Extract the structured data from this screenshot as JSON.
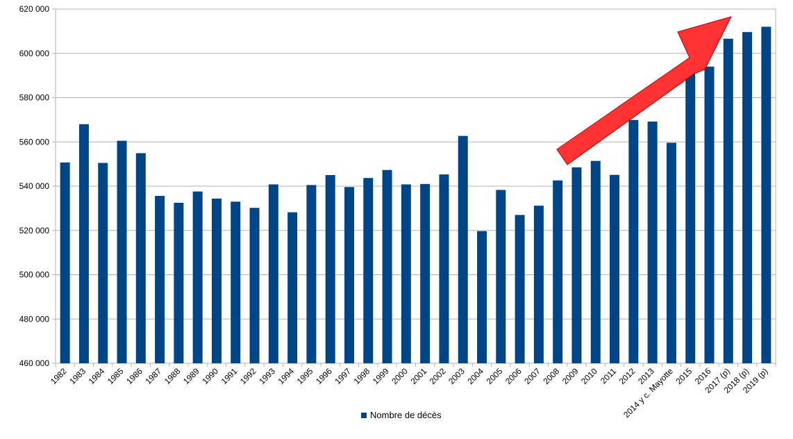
{
  "chart_data": {
    "type": "bar",
    "categories": [
      "1982",
      "1983",
      "1984",
      "1985",
      "1986",
      "1987",
      "1988",
      "1989",
      "1990",
      "1991",
      "1992",
      "1993",
      "1994",
      "1995",
      "1996",
      "1997",
      "1998",
      "1999",
      "2000",
      "2001",
      "2002",
      "2003",
      "2004",
      "2005",
      "2006",
      "2007",
      "2008",
      "2009",
      "2010",
      "2011",
      "2012",
      "2013",
      "2014 y c. Mayotte",
      "2015",
      "2016",
      "2017 (p)",
      "2018 (p)",
      "2019 (p)"
    ],
    "series": [
      {
        "name": "Nombre de décès",
        "values": [
          550700,
          568000,
          550500,
          560500,
          554900,
          535600,
          532500,
          537600,
          534400,
          533000,
          530200,
          540800,
          528200,
          540500,
          545000,
          539600,
          543700,
          547300,
          540800,
          541000,
          545300,
          562700,
          519700,
          538300,
          527000,
          531200,
          542600,
          548500,
          551400,
          545100,
          569900,
          569200,
          559600,
          593700,
          594000,
          606600,
          609600,
          612000
        ]
      }
    ],
    "ylim": [
      460000,
      620000
    ],
    "yticks": [
      "460 000",
      "480 000",
      "500 000",
      "520 000",
      "540 000",
      "560 000",
      "580 000",
      "600 000",
      "620 000"
    ],
    "ytick_values": [
      460000,
      480000,
      500000,
      520000,
      540000,
      560000,
      580000,
      600000,
      620000
    ],
    "grid": true,
    "legend_position": "bottom",
    "annotation": "red-arrow-upward-trend",
    "colors": {
      "bar": "#004586",
      "grid": "#b3b3b3",
      "axis": "#b3b3b3",
      "arrow_fill": "#ff3333",
      "arrow_stroke": "#b30000"
    },
    "title": "",
    "xlabel": "",
    "ylabel": ""
  }
}
